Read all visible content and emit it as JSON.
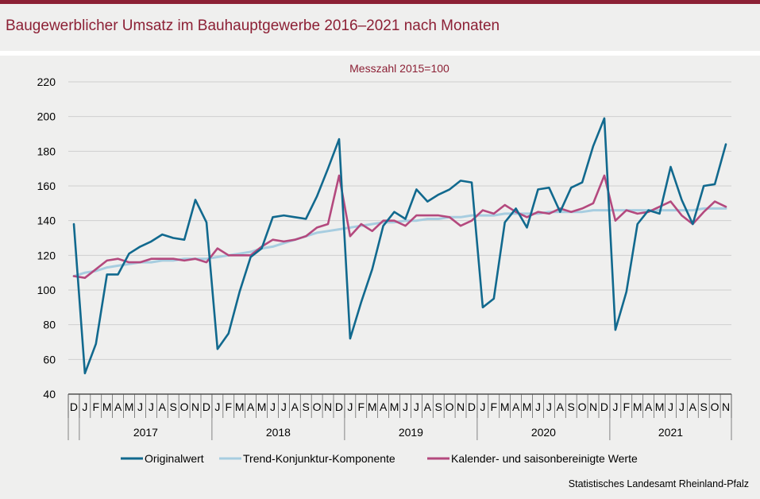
{
  "header": {
    "title": "Baugewerblicher Umsatz im Bauhauptgewerbe 2016–2021 nach Monaten"
  },
  "footer": {
    "source": "Statistisches Landesamt Rheinland-Pfalz"
  },
  "colors": {
    "brand": "#8c2035",
    "original": "#11698e",
    "trend": "#a7cde0",
    "adjusted": "#b4497e",
    "grid": "#cfcfcf"
  },
  "chart_data": {
    "type": "line",
    "subtitle": "Messzahl 2015=100",
    "ylim": [
      40,
      220
    ],
    "yticks": [
      40,
      60,
      80,
      100,
      120,
      140,
      160,
      180,
      200,
      220
    ],
    "grid": true,
    "legend_position": "bottom",
    "month_labels": [
      "D",
      "J",
      "F",
      "M",
      "A",
      "M",
      "J",
      "J",
      "A",
      "S",
      "O",
      "N",
      "D",
      "J",
      "F",
      "M",
      "A",
      "M",
      "J",
      "J",
      "A",
      "S",
      "O",
      "N",
      "D",
      "J",
      "F",
      "M",
      "A",
      "M",
      "J",
      "J",
      "A",
      "S",
      "O",
      "N",
      "D",
      "J",
      "F",
      "M",
      "A",
      "M",
      "J",
      "J",
      "A",
      "S",
      "O",
      "N",
      "D",
      "J",
      "F",
      "M",
      "A",
      "M",
      "J",
      "J",
      "A",
      "S",
      "O",
      "N"
    ],
    "year_labels": [
      "2017",
      "2018",
      "2019",
      "2020",
      "2021"
    ],
    "x": [
      "2016-12",
      "2017-01",
      "2017-02",
      "2017-03",
      "2017-04",
      "2017-05",
      "2017-06",
      "2017-07",
      "2017-08",
      "2017-09",
      "2017-10",
      "2017-11",
      "2017-12",
      "2018-01",
      "2018-02",
      "2018-03",
      "2018-04",
      "2018-05",
      "2018-06",
      "2018-07",
      "2018-08",
      "2018-09",
      "2018-10",
      "2018-11",
      "2018-12",
      "2019-01",
      "2019-02",
      "2019-03",
      "2019-04",
      "2019-05",
      "2019-06",
      "2019-07",
      "2019-08",
      "2019-09",
      "2019-10",
      "2019-11",
      "2019-12",
      "2020-01",
      "2020-02",
      "2020-03",
      "2020-04",
      "2020-05",
      "2020-06",
      "2020-07",
      "2020-08",
      "2020-09",
      "2020-10",
      "2020-11",
      "2020-12",
      "2021-01",
      "2021-02",
      "2021-03",
      "2021-04",
      "2021-05",
      "2021-06",
      "2021-07",
      "2021-08",
      "2021-09",
      "2021-10",
      "2021-11"
    ],
    "series": [
      {
        "name": "Originalwert",
        "values": [
          138,
          52,
          69,
          109,
          109,
          121,
          125,
          128,
          132,
          130,
          129,
          152,
          139,
          66,
          75,
          99,
          119,
          124,
          142,
          143,
          142,
          141,
          154,
          170,
          187,
          72,
          93,
          112,
          137,
          145,
          141,
          158,
          151,
          155,
          158,
          163,
          162,
          90,
          95,
          139,
          147,
          136,
          158,
          159,
          145,
          159,
          162,
          183,
          199,
          77,
          99,
          138,
          146,
          144,
          171,
          152,
          138,
          160,
          161,
          184
        ]
      },
      {
        "name": "Trend-Konjunktur-Komponente",
        "values": [
          108,
          110,
          111,
          113,
          114,
          115,
          116,
          116,
          117,
          117,
          118,
          118,
          118,
          119,
          120,
          121,
          122,
          124,
          125,
          127,
          129,
          131,
          133,
          134,
          135,
          136,
          137,
          138,
          139,
          139,
          140,
          140,
          141,
          141,
          142,
          142,
          143,
          143,
          143,
          144,
          144,
          144,
          144,
          145,
          145,
          145,
          145,
          146,
          146,
          146,
          146,
          146,
          146,
          146,
          146,
          146,
          146,
          147,
          147,
          147
        ]
      },
      {
        "name": "Kalender- und saisonbereinigte Werte",
        "values": [
          108,
          107,
          112,
          117,
          118,
          116,
          116,
          118,
          118,
          118,
          117,
          118,
          116,
          124,
          120,
          120,
          120,
          125,
          129,
          128,
          129,
          131,
          136,
          138,
          166,
          131,
          138,
          134,
          140,
          140,
          137,
          143,
          143,
          143,
          142,
          137,
          140,
          146,
          144,
          149,
          145,
          142,
          145,
          144,
          147,
          145,
          147,
          150,
          166,
          140,
          146,
          144,
          145,
          148,
          151,
          143,
          138,
          145,
          151,
          148
        ]
      }
    ]
  }
}
